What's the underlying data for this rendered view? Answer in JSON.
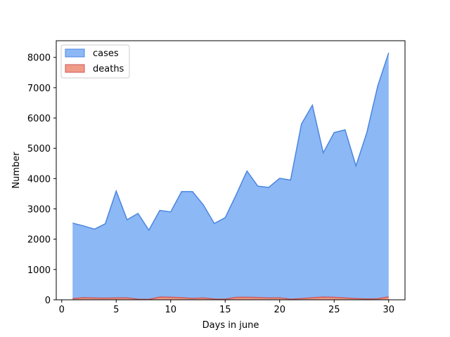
{
  "chart_data": {
    "type": "area",
    "xlabel": "Days in june",
    "ylabel": "Number",
    "xlim": [
      -0.5,
      31.5
    ],
    "ylim": [
      0,
      8550
    ],
    "xticks": [
      0,
      5,
      10,
      15,
      20,
      25,
      30
    ],
    "yticks": [
      0,
      1000,
      2000,
      3000,
      4000,
      5000,
      6000,
      7000,
      8000
    ],
    "grid": false,
    "legend_placement": "upper-left",
    "x": [
      1,
      2,
      3,
      4,
      5,
      6,
      7,
      8,
      9,
      10,
      11,
      12,
      13,
      14,
      15,
      16,
      17,
      18,
      19,
      20,
      21,
      22,
      23,
      24,
      25,
      26,
      27,
      28,
      29,
      30
    ],
    "series": [
      {
        "name": "cases",
        "fill": "#8cb8f5",
        "line": "#4a86e0",
        "values": [
          2530,
          2440,
          2330,
          2510,
          3590,
          2640,
          2850,
          2300,
          2950,
          2900,
          3570,
          3570,
          3130,
          2520,
          2710,
          3460,
          4250,
          3750,
          3710,
          4010,
          3950,
          5800,
          6420,
          4850,
          5520,
          5610,
          4420,
          5520,
          7060,
          8150
        ]
      },
      {
        "name": "deaths",
        "fill": "#f09a88",
        "line": "#cc5a5a",
        "values": [
          40,
          70,
          60,
          55,
          60,
          65,
          20,
          15,
          90,
          85,
          70,
          45,
          60,
          25,
          20,
          80,
          85,
          75,
          60,
          65,
          20,
          40,
          70,
          90,
          80,
          60,
          40,
          30,
          35,
          95
        ]
      }
    ]
  }
}
